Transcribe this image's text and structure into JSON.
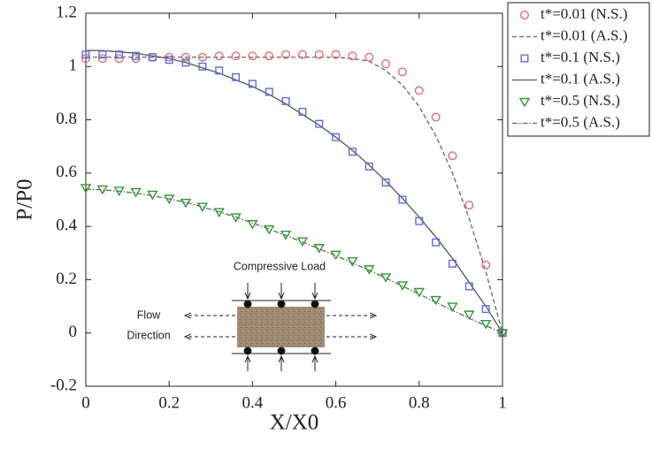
{
  "chart_data": {
    "type": "scatter-line",
    "x_label": "X/X0",
    "y_label": "P/P0",
    "xlim": [
      0,
      1
    ],
    "ylim": [
      -0.2,
      1.2
    ],
    "xticks": [
      0,
      0.2,
      0.4,
      0.6,
      0.8,
      1
    ],
    "yticks": [
      -0.2,
      0,
      0.2,
      0.4,
      0.6,
      0.8,
      1,
      1.2
    ],
    "legend": "outside-top-right",
    "annotations": [
      "Compressive Load",
      "Flow",
      "Direction"
    ],
    "series": [
      {
        "name": "t*=0.01 (N.S.)",
        "color": "#e66e6e",
        "marker": "circle",
        "x": [
          0,
          0.04,
          0.08,
          0.12,
          0.16,
          0.2,
          0.24,
          0.28,
          0.32,
          0.36,
          0.4,
          0.44,
          0.48,
          0.52,
          0.56,
          0.6,
          0.64,
          0.68,
          0.72,
          0.76,
          0.8,
          0.84,
          0.88,
          0.92,
          0.96,
          1
        ],
        "values": [
          1.03,
          1.03,
          1.03,
          1.03,
          1.035,
          1.035,
          1.035,
          1.035,
          1.04,
          1.04,
          1.04,
          1.04,
          1.045,
          1.045,
          1.045,
          1.045,
          1.04,
          1.035,
          1.01,
          0.98,
          0.91,
          0.81,
          0.665,
          0.48,
          0.255,
          0
        ]
      },
      {
        "name": "t*=0.01 (A.S.)",
        "color": "#666666",
        "line": "dashed",
        "x": [
          0,
          0.04,
          0.08,
          0.12,
          0.16,
          0.2,
          0.24,
          0.28,
          0.32,
          0.36,
          0.4,
          0.44,
          0.48,
          0.52,
          0.56,
          0.6,
          0.64,
          0.68,
          0.72,
          0.76,
          0.8,
          0.84,
          0.88,
          0.92,
          0.96,
          1
        ],
        "values": [
          1.035,
          1.035,
          1.035,
          1.035,
          1.035,
          1.035,
          1.035,
          1.035,
          1.035,
          1.035,
          1.035,
          1.035,
          1.035,
          1.035,
          1.035,
          1.035,
          1.03,
          1.02,
          0.985,
          0.93,
          0.85,
          0.74,
          0.6,
          0.43,
          0.23,
          0
        ]
      },
      {
        "name": "t*=0.1 (N.S.)",
        "color": "#5a6ee0",
        "marker": "square",
        "x": [
          0,
          0.04,
          0.08,
          0.12,
          0.16,
          0.2,
          0.24,
          0.28,
          0.32,
          0.36,
          0.4,
          0.44,
          0.48,
          0.52,
          0.56,
          0.6,
          0.64,
          0.68,
          0.72,
          0.76,
          0.8,
          0.84,
          0.88,
          0.92,
          0.96,
          1
        ],
        "values": [
          1.045,
          1.045,
          1.045,
          1.04,
          1.035,
          1.025,
          1.015,
          1.0,
          0.985,
          0.96,
          0.935,
          0.905,
          0.87,
          0.83,
          0.785,
          0.735,
          0.68,
          0.625,
          0.565,
          0.5,
          0.42,
          0.34,
          0.26,
          0.175,
          0.09,
          0
        ]
      },
      {
        "name": "t*=0.1 (A.S.)",
        "color": "#555555",
        "line": "solid",
        "x": [
          0,
          0.04,
          0.08,
          0.12,
          0.16,
          0.2,
          0.24,
          0.28,
          0.32,
          0.36,
          0.4,
          0.44,
          0.48,
          0.52,
          0.56,
          0.6,
          0.64,
          0.68,
          0.72,
          0.76,
          0.8,
          0.84,
          0.88,
          0.92,
          0.96,
          1
        ],
        "values": [
          1.06,
          1.06,
          1.055,
          1.05,
          1.04,
          1.03,
          1.015,
          0.995,
          0.975,
          0.95,
          0.925,
          0.895,
          0.86,
          0.82,
          0.78,
          0.735,
          0.685,
          0.63,
          0.57,
          0.505,
          0.435,
          0.36,
          0.28,
          0.19,
          0.1,
          0
        ]
      },
      {
        "name": "t*=0.5 (N.S.)",
        "color": "#2e9a2e",
        "marker": "triangle",
        "x": [
          0,
          0.04,
          0.08,
          0.12,
          0.16,
          0.2,
          0.24,
          0.28,
          0.32,
          0.36,
          0.4,
          0.44,
          0.48,
          0.52,
          0.56,
          0.6,
          0.64,
          0.68,
          0.72,
          0.76,
          0.8,
          0.84,
          0.88,
          0.92,
          0.96,
          1
        ],
        "values": [
          0.545,
          0.54,
          0.535,
          0.53,
          0.52,
          0.505,
          0.49,
          0.475,
          0.455,
          0.435,
          0.41,
          0.39,
          0.37,
          0.345,
          0.32,
          0.295,
          0.27,
          0.24,
          0.21,
          0.18,
          0.155,
          0.125,
          0.1,
          0.07,
          0.035,
          0
        ]
      },
      {
        "name": "t*=0.5 (A.S.)",
        "color": "#666666",
        "line": "dashdot",
        "x": [
          0,
          0.04,
          0.08,
          0.12,
          0.16,
          0.2,
          0.24,
          0.28,
          0.32,
          0.36,
          0.4,
          0.44,
          0.48,
          0.52,
          0.56,
          0.6,
          0.64,
          0.68,
          0.72,
          0.76,
          0.8,
          0.84,
          0.88,
          0.92,
          0.96,
          1
        ],
        "values": [
          0.54,
          0.537,
          0.532,
          0.525,
          0.515,
          0.503,
          0.49,
          0.473,
          0.455,
          0.435,
          0.413,
          0.39,
          0.366,
          0.341,
          0.316,
          0.29,
          0.263,
          0.235,
          0.206,
          0.176,
          0.146,
          0.115,
          0.085,
          0.055,
          0.027,
          0
        ]
      }
    ]
  }
}
